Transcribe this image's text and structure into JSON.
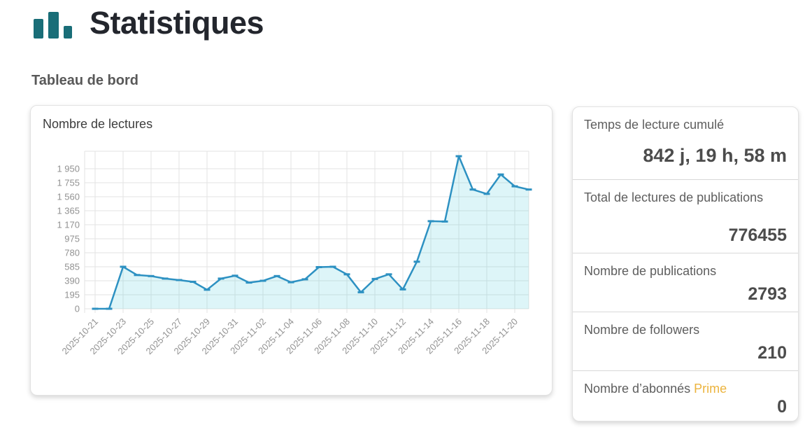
{
  "page": {
    "title": "Statistiques",
    "subtitle": "Tableau de bord"
  },
  "chart_data": {
    "type": "area",
    "title": "Nombre de lectures",
    "x": [
      "2025-10-21",
      "2025-10-22",
      "2025-10-23",
      "2025-10-24",
      "2025-10-25",
      "2025-10-26",
      "2025-10-27",
      "2025-10-28",
      "2025-10-29",
      "2025-10-30",
      "2025-10-31",
      "2025-11-01",
      "2025-11-02",
      "2025-11-03",
      "2025-11-04",
      "2025-11-05",
      "2025-11-06",
      "2025-11-07",
      "2025-11-08",
      "2025-11-09",
      "2025-11-10",
      "2025-11-11",
      "2025-11-12",
      "2025-11-13",
      "2025-11-14",
      "2025-11-15",
      "2025-11-16",
      "2025-11-17",
      "2025-11-18",
      "2025-11-19",
      "2025-11-20",
      "2025-11-21"
    ],
    "values": [
      0,
      0,
      585,
      470,
      455,
      420,
      400,
      375,
      265,
      420,
      460,
      365,
      390,
      455,
      370,
      410,
      580,
      585,
      480,
      230,
      415,
      480,
      270,
      655,
      1220,
      1215,
      2125,
      1660,
      1600,
      1870,
      1705,
      1660
    ],
    "x_tick_labels": [
      "2025-10-21",
      "2025-10-23",
      "2025-10-25",
      "2025-10-27",
      "2025-10-29",
      "2025-10-31",
      "2025-11-02",
      "2025-11-04",
      "2025-11-06",
      "2025-11-08",
      "2025-11-10",
      "2025-11-12",
      "2025-11-14",
      "2025-11-16",
      "2025-11-18",
      "2025-11-20"
    ],
    "y_ticks": [
      0,
      195,
      390,
      585,
      780,
      975,
      1170,
      1365,
      1560,
      1755,
      1950
    ],
    "ylim": [
      0,
      2195
    ],
    "grid": true,
    "legend": false,
    "marker": "horizontal-dash"
  },
  "stats_panel": {
    "items": [
      {
        "label": "Temps de lecture cumulé",
        "value": "842 j, 19 h, 58 m"
      },
      {
        "label": "Total de lectures de publications",
        "value": "776455"
      },
      {
        "label": "Nombre de publications",
        "value": "2793"
      },
      {
        "label": "Nombre de followers",
        "value": "210"
      },
      {
        "label": "Nombre d’abonnés",
        "label_highlight": "Prime",
        "value": "0"
      }
    ]
  },
  "colors": {
    "accent_teal": "#1a6e78",
    "line": "#2d91c2",
    "area_fill": "rgba(64,199,214,0.18)",
    "grid": "#e3e3e3",
    "axis_label": "#929292",
    "prime_highlight": "#ecb43e",
    "title_text": "#23262d"
  }
}
